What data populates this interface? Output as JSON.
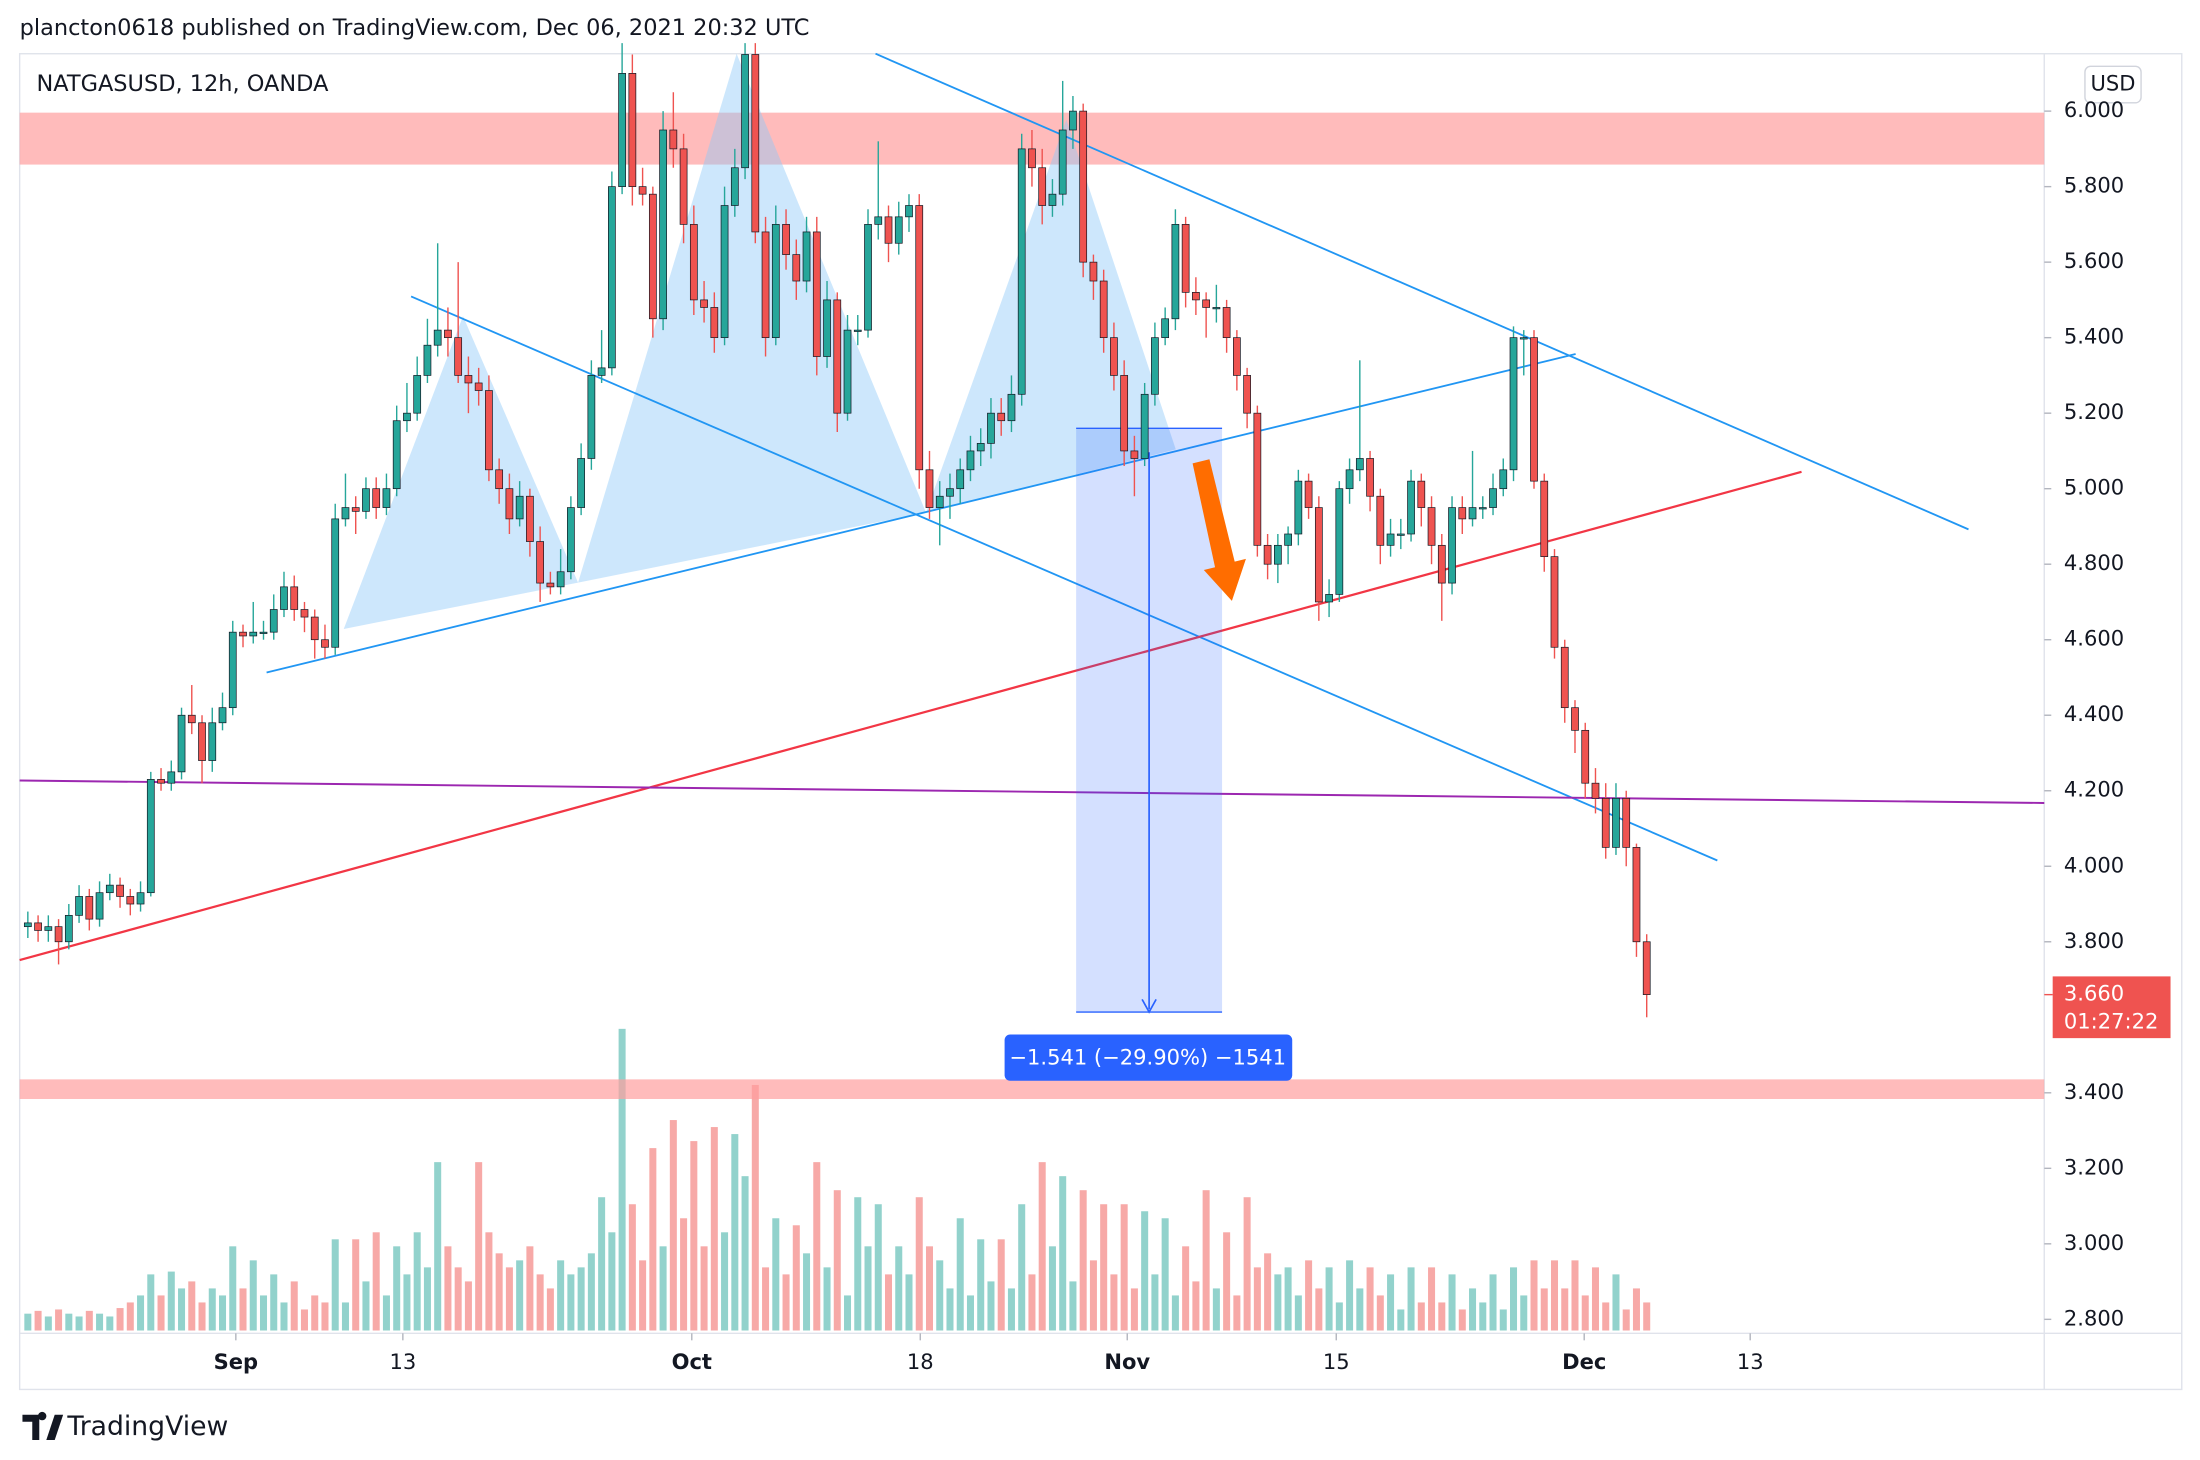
{
  "header": {
    "publisher": "plancton0618 published on TradingView.com, Dec 06, 2021 20:32 UTC",
    "brand": "TradingView"
  },
  "chart_data": {
    "type": "candlestick",
    "title": "NATGASUSD, 12h, OANDA",
    "currency": "USD",
    "up_color": "#26a69a",
    "down_color": "#ef5350",
    "xlim": [
      -0.8,
      196.8
    ],
    "xticks": [
      {
        "value": 20.3,
        "label": "Sep"
      },
      {
        "value": 36.6,
        "label": "13"
      },
      {
        "value": 64.8,
        "label": "Oct"
      },
      {
        "value": 87.1,
        "label": "18"
      },
      {
        "value": 107.3,
        "label": "Nov"
      },
      {
        "value": 127.7,
        "label": "15"
      },
      {
        "value": 151.9,
        "label": "Dec"
      },
      {
        "value": 168.1,
        "label": "13"
      }
    ],
    "ylim": [
      2.763,
      6.152
    ],
    "yticks": [
      {
        "value": 2.8,
        "label": "2.800"
      },
      {
        "value": 3.0,
        "label": "3.000"
      },
      {
        "value": 3.2,
        "label": "3.200"
      },
      {
        "value": 3.4,
        "label": "3.400"
      },
      {
        "value": 3.8,
        "label": "3.800"
      },
      {
        "value": 4.0,
        "label": "4.000"
      },
      {
        "value": 4.2,
        "label": "4.200"
      },
      {
        "value": 4.4,
        "label": "4.400"
      },
      {
        "value": 4.6,
        "label": "4.600"
      },
      {
        "value": 4.8,
        "label": "4.800"
      },
      {
        "value": 5.0,
        "label": "5.000"
      },
      {
        "value": 5.2,
        "label": "5.200"
      },
      {
        "value": 5.4,
        "label": "5.400"
      },
      {
        "value": 5.6,
        "label": "5.600"
      },
      {
        "value": 5.8,
        "label": "5.800"
      },
      {
        "value": 6.0,
        "label": "6.000"
      }
    ],
    "last_price_label": "3.660",
    "countdown": "01:27:22",
    "annotation": "−1.541 (−29.90%) −1541",
    "ohlc": [
      [
        3.84,
        3.88,
        3.81,
        3.85
      ],
      [
        3.85,
        3.87,
        3.8,
        3.83
      ],
      [
        3.83,
        3.87,
        3.8,
        3.84
      ],
      [
        3.84,
        3.86,
        3.74,
        3.8
      ],
      [
        3.8,
        3.9,
        3.78,
        3.87
      ],
      [
        3.87,
        3.95,
        3.85,
        3.92
      ],
      [
        3.92,
        3.94,
        3.83,
        3.86
      ],
      [
        3.86,
        3.96,
        3.84,
        3.93
      ],
      [
        3.93,
        3.98,
        3.91,
        3.95
      ],
      [
        3.95,
        3.97,
        3.89,
        3.92
      ],
      [
        3.92,
        3.94,
        3.87,
        3.9
      ],
      [
        3.9,
        3.96,
        3.88,
        3.93
      ],
      [
        3.93,
        4.25,
        3.92,
        4.23
      ],
      [
        4.23,
        4.26,
        4.2,
        4.22
      ],
      [
        4.22,
        4.28,
        4.2,
        4.25
      ],
      [
        4.25,
        4.42,
        4.23,
        4.4
      ],
      [
        4.4,
        4.48,
        4.35,
        4.38
      ],
      [
        4.38,
        4.4,
        4.22,
        4.28
      ],
      [
        4.28,
        4.42,
        4.25,
        4.38
      ],
      [
        4.38,
        4.46,
        4.36,
        4.42
      ],
      [
        4.42,
        4.65,
        4.4,
        4.62
      ],
      [
        4.62,
        4.64,
        4.58,
        4.61
      ],
      [
        4.61,
        4.7,
        4.59,
        4.62
      ],
      [
        4.62,
        4.65,
        4.6,
        4.62
      ],
      [
        4.62,
        4.72,
        4.6,
        4.68
      ],
      [
        4.68,
        4.78,
        4.66,
        4.74
      ],
      [
        4.74,
        4.77,
        4.65,
        4.68
      ],
      [
        4.68,
        4.7,
        4.62,
        4.66
      ],
      [
        4.66,
        4.68,
        4.55,
        4.6
      ],
      [
        4.6,
        4.64,
        4.55,
        4.58
      ],
      [
        4.58,
        4.96,
        4.56,
        4.92
      ],
      [
        4.92,
        5.04,
        4.9,
        4.95
      ],
      [
        4.95,
        4.98,
        4.88,
        4.94
      ],
      [
        4.94,
        5.03,
        4.92,
        5.0
      ],
      [
        5.0,
        5.03,
        4.92,
        4.95
      ],
      [
        4.95,
        5.04,
        4.93,
        5.0
      ],
      [
        5.0,
        5.22,
        4.98,
        5.18
      ],
      [
        5.18,
        5.28,
        5.15,
        5.2
      ],
      [
        5.2,
        5.35,
        5.18,
        5.3
      ],
      [
        5.3,
        5.45,
        5.28,
        5.38
      ],
      [
        5.38,
        5.65,
        5.35,
        5.42
      ],
      [
        5.42,
        5.48,
        5.35,
        5.4
      ],
      [
        5.4,
        5.6,
        5.28,
        5.3
      ],
      [
        5.3,
        5.35,
        5.2,
        5.28
      ],
      [
        5.28,
        5.32,
        5.22,
        5.26
      ],
      [
        5.26,
        5.3,
        5.02,
        5.05
      ],
      [
        5.05,
        5.08,
        4.96,
        5.0
      ],
      [
        5.0,
        5.04,
        4.88,
        4.92
      ],
      [
        4.92,
        5.02,
        4.9,
        4.98
      ],
      [
        4.98,
        5.0,
        4.82,
        4.86
      ],
      [
        4.86,
        4.9,
        4.7,
        4.75
      ],
      [
        4.75,
        4.78,
        4.72,
        4.74
      ],
      [
        4.74,
        4.84,
        4.72,
        4.78
      ],
      [
        4.78,
        4.98,
        4.76,
        4.95
      ],
      [
        4.95,
        5.12,
        4.93,
        5.08
      ],
      [
        5.08,
        5.34,
        5.05,
        5.3
      ],
      [
        5.3,
        5.42,
        5.28,
        5.32
      ],
      [
        5.32,
        5.84,
        5.3,
        5.8
      ],
      [
        5.8,
        6.18,
        5.78,
        6.1
      ],
      [
        6.1,
        6.15,
        5.75,
        5.8
      ],
      [
        5.8,
        5.85,
        5.75,
        5.78
      ],
      [
        5.78,
        5.8,
        5.4,
        5.45
      ],
      [
        5.45,
        6.0,
        5.42,
        5.95
      ],
      [
        5.95,
        6.05,
        5.85,
        5.9
      ],
      [
        5.9,
        5.94,
        5.65,
        5.7
      ],
      [
        5.7,
        5.75,
        5.46,
        5.5
      ],
      [
        5.5,
        5.55,
        5.44,
        5.48
      ],
      [
        5.48,
        5.52,
        5.36,
        5.4
      ],
      [
        5.4,
        5.8,
        5.38,
        5.75
      ],
      [
        5.75,
        5.9,
        5.72,
        5.85
      ],
      [
        5.85,
        6.18,
        5.82,
        6.15
      ],
      [
        6.15,
        6.18,
        5.65,
        5.68
      ],
      [
        5.68,
        5.72,
        5.35,
        5.4
      ],
      [
        5.4,
        5.75,
        5.38,
        5.7
      ],
      [
        5.7,
        5.74,
        5.58,
        5.62
      ],
      [
        5.62,
        5.66,
        5.5,
        5.55
      ],
      [
        5.55,
        5.72,
        5.52,
        5.68
      ],
      [
        5.68,
        5.72,
        5.3,
        5.35
      ],
      [
        5.35,
        5.55,
        5.32,
        5.5
      ],
      [
        5.5,
        5.52,
        5.15,
        5.2
      ],
      [
        5.2,
        5.46,
        5.18,
        5.42
      ],
      [
        5.42,
        5.46,
        5.38,
        5.42
      ],
      [
        5.42,
        5.74,
        5.4,
        5.7
      ],
      [
        5.7,
        5.92,
        5.66,
        5.72
      ],
      [
        5.72,
        5.75,
        5.6,
        5.65
      ],
      [
        5.65,
        5.76,
        5.62,
        5.72
      ],
      [
        5.72,
        5.78,
        5.68,
        5.75
      ],
      [
        5.75,
        5.78,
        5.0,
        5.05
      ],
      [
        5.05,
        5.1,
        4.92,
        4.95
      ],
      [
        4.95,
        5.02,
        4.85,
        4.98
      ],
      [
        4.98,
        5.04,
        4.92,
        5.0
      ],
      [
        5.0,
        5.08,
        4.96,
        5.05
      ],
      [
        5.05,
        5.14,
        5.02,
        5.1
      ],
      [
        5.1,
        5.16,
        5.06,
        5.12
      ],
      [
        5.12,
        5.24,
        5.08,
        5.2
      ],
      [
        5.2,
        5.24,
        5.14,
        5.18
      ],
      [
        5.18,
        5.3,
        5.15,
        5.25
      ],
      [
        5.25,
        5.94,
        5.22,
        5.9
      ],
      [
        5.9,
        5.95,
        5.8,
        5.85
      ],
      [
        5.85,
        5.9,
        5.7,
        5.75
      ],
      [
        5.75,
        5.82,
        5.72,
        5.78
      ],
      [
        5.78,
        6.08,
        5.75,
        5.95
      ],
      [
        5.95,
        6.04,
        5.9,
        6.0
      ],
      [
        6.0,
        6.02,
        5.56,
        5.6
      ],
      [
        5.6,
        5.62,
        5.5,
        5.55
      ],
      [
        5.55,
        5.58,
        5.36,
        5.4
      ],
      [
        5.4,
        5.44,
        5.26,
        5.3
      ],
      [
        5.3,
        5.34,
        5.06,
        5.1
      ],
      [
        5.1,
        5.14,
        4.98,
        5.08
      ],
      [
        5.08,
        5.28,
        5.06,
        5.25
      ],
      [
        5.25,
        5.44,
        5.22,
        5.4
      ],
      [
        5.4,
        5.48,
        5.38,
        5.45
      ],
      [
        5.45,
        5.74,
        5.42,
        5.7
      ],
      [
        5.7,
        5.72,
        5.48,
        5.52
      ],
      [
        5.52,
        5.56,
        5.46,
        5.5
      ],
      [
        5.5,
        5.52,
        5.4,
        5.48
      ],
      [
        5.48,
        5.54,
        5.44,
        5.48
      ],
      [
        5.48,
        5.5,
        5.36,
        5.4
      ],
      [
        5.4,
        5.42,
        5.26,
        5.3
      ],
      [
        5.3,
        5.32,
        5.16,
        5.2
      ],
      [
        5.2,
        5.22,
        4.82,
        4.85
      ],
      [
        4.85,
        4.88,
        4.76,
        4.8
      ],
      [
        4.8,
        4.88,
        4.75,
        4.85
      ],
      [
        4.85,
        4.9,
        4.8,
        4.88
      ],
      [
        4.88,
        5.05,
        4.85,
        5.02
      ],
      [
        5.02,
        5.04,
        4.92,
        4.95
      ],
      [
        4.95,
        4.98,
        4.65,
        4.7
      ],
      [
        4.7,
        4.76,
        4.66,
        4.72
      ],
      [
        4.72,
        5.02,
        4.7,
        5.0
      ],
      [
        5.0,
        5.08,
        4.96,
        5.05
      ],
      [
        5.05,
        5.34,
        5.02,
        5.08
      ],
      [
        5.08,
        5.1,
        4.94,
        4.98
      ],
      [
        4.98,
        5.0,
        4.8,
        4.85
      ],
      [
        4.85,
        4.92,
        4.82,
        4.88
      ],
      [
        4.88,
        4.92,
        4.84,
        4.88
      ],
      [
        4.88,
        5.05,
        4.86,
        5.02
      ],
      [
        5.02,
        5.04,
        4.9,
        4.95
      ],
      [
        4.95,
        4.98,
        4.8,
        4.85
      ],
      [
        4.85,
        4.88,
        4.65,
        4.75
      ],
      [
        4.75,
        4.98,
        4.72,
        4.95
      ],
      [
        4.95,
        4.98,
        4.88,
        4.92
      ],
      [
        4.92,
        5.1,
        4.9,
        4.95
      ],
      [
        4.95,
        4.98,
        4.92,
        4.95
      ],
      [
        4.95,
        5.04,
        4.93,
        5.0
      ],
      [
        5.0,
        5.08,
        4.98,
        5.05
      ],
      [
        5.05,
        5.43,
        5.02,
        5.4
      ],
      [
        5.4,
        5.42,
        5.3,
        5.4
      ],
      [
        5.4,
        5.42,
        5.0,
        5.02
      ],
      [
        5.02,
        5.04,
        4.78,
        4.82
      ],
      [
        4.82,
        4.84,
        4.55,
        4.58
      ],
      [
        4.58,
        4.6,
        4.38,
        4.42
      ],
      [
        4.42,
        4.44,
        4.3,
        4.36
      ],
      [
        4.36,
        4.38,
        4.18,
        4.22
      ],
      [
        4.22,
        4.26,
        4.14,
        4.18
      ],
      [
        4.18,
        4.22,
        4.02,
        4.05
      ],
      [
        4.05,
        4.22,
        4.03,
        4.18
      ],
      [
        4.18,
        4.2,
        4.0,
        4.05
      ],
      [
        4.05,
        4.06,
        3.76,
        3.8
      ],
      [
        3.8,
        3.82,
        3.6,
        3.66
      ]
    ],
    "volume": [
      12,
      14,
      10,
      15,
      12,
      10,
      14,
      12,
      10,
      16,
      20,
      25,
      40,
      25,
      42,
      30,
      35,
      20,
      30,
      25,
      60,
      30,
      50,
      25,
      40,
      20,
      35,
      15,
      25,
      20,
      65,
      20,
      65,
      35,
      70,
      25,
      60,
      40,
      70,
      45,
      120,
      60,
      45,
      35,
      120,
      70,
      55,
      45,
      50,
      60,
      40,
      30,
      50,
      40,
      45,
      55,
      95,
      70,
      215,
      90,
      50,
      130,
      60,
      150,
      80,
      135,
      60,
      145,
      70,
      140,
      110,
      175,
      45,
      80,
      40,
      75,
      55,
      120,
      45,
      100,
      25,
      95,
      60,
      90,
      40,
      60,
      40,
      95,
      60,
      50,
      30,
      80,
      25,
      65,
      35,
      65,
      30,
      90,
      40,
      120,
      60,
      110,
      35,
      100,
      50,
      90,
      40,
      90,
      30,
      85,
      40,
      80,
      25,
      60,
      35,
      100,
      30,
      70,
      25,
      95,
      45,
      55,
      40,
      45,
      25,
      50,
      30,
      45,
      20,
      50,
      30,
      45,
      25,
      40,
      15,
      45,
      20,
      45,
      20,
      40,
      15,
      30,
      20,
      40,
      15,
      45,
      25,
      50,
      30,
      50,
      30,
      50,
      25,
      45,
      20,
      40,
      15,
      30,
      20
    ]
  }
}
